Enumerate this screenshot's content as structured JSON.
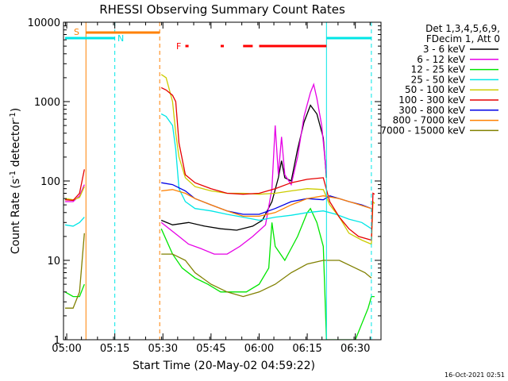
{
  "chart_data": {
    "type": "line",
    "title": "RHESSI Observing Summary Count Rates",
    "xlabel": "Start Time (20-May-02 04:59:22)",
    "ylabel_main": "Count Rate (s",
    "ylabel_sup1": "-1",
    "ylabel_mid": " detector",
    "ylabel_sup2": "-1",
    "ylabel_end": ")",
    "yscale": "log",
    "ylim": [
      1,
      10000
    ],
    "xlim": [
      "04:59:22",
      "06:38"
    ],
    "x_ticks": [
      "05:00",
      "05:15",
      "05:30",
      "05:45",
      "06:00",
      "06:15",
      "06:30"
    ],
    "y_ticks": [
      "1",
      "10",
      "100",
      "1000",
      "10000"
    ],
    "legend_header": [
      "Det 1,3,4,5,6,9,",
      "FDecim 1, Att 0"
    ],
    "legend_position": "right",
    "footer_date": "16-Oct-2021 02:51",
    "flags": {
      "saa_label": "S",
      "night_label": "N",
      "flare_label": "F",
      "saa_color": "#ff8000",
      "night_color": "#00e6e6",
      "flare_color": "#ff0000"
    },
    "vertical_markers": [
      {
        "time": "05:06",
        "color": "#ff8000",
        "style": "solid"
      },
      {
        "time": "05:15",
        "color": "#00e6e6",
        "style": "dashed"
      },
      {
        "time": "05:29",
        "color": "#ff8000",
        "style": "dashed"
      },
      {
        "time": "06:21",
        "color": "#00e6e6",
        "style": "solid"
      },
      {
        "time": "06:35",
        "color": "#00e6e6",
        "style": "dashed"
      }
    ],
    "series": [
      {
        "name": "3 - 6 keV",
        "color": "#000000",
        "points": [
          [
            "05:29.5",
            32
          ],
          [
            "05:33",
            28
          ],
          [
            "05:38",
            30
          ],
          [
            "05:43",
            27
          ],
          [
            "05:48",
            25
          ],
          [
            "05:53",
            24
          ],
          [
            "05:58",
            27
          ],
          [
            "06:01",
            32
          ],
          [
            "06:04",
            55
          ],
          [
            "06:06",
            110
          ],
          [
            "06:07",
            180
          ],
          [
            "06:08",
            110
          ],
          [
            "06:10",
            100
          ],
          [
            "06:12",
            250
          ],
          [
            "06:14",
            550
          ],
          [
            "06:16",
            900
          ],
          [
            "06:18",
            700
          ],
          [
            "06:20",
            350
          ],
          [
            "06:21",
            110
          ]
        ]
      },
      {
        "name": "6 - 12 keV",
        "color": "#e600e6",
        "points": [
          [
            "04:59.5",
            55
          ],
          [
            "05:02",
            55
          ],
          [
            "05:04",
            65
          ],
          [
            "05:05.5",
            90
          ],
          [
            "05:29.5",
            30
          ],
          [
            "05:32",
            25
          ],
          [
            "05:35",
            20
          ],
          [
            "05:38",
            16
          ],
          [
            "05:42",
            14
          ],
          [
            "05:46",
            12
          ],
          [
            "05:50",
            12
          ],
          [
            "05:54",
            15
          ],
          [
            "05:58",
            20
          ],
          [
            "06:02",
            28
          ],
          [
            "06:04",
            80
          ],
          [
            "06:05",
            500
          ],
          [
            "06:06",
            120
          ],
          [
            "06:07",
            360
          ],
          [
            "06:08",
            120
          ],
          [
            "06:10",
            90
          ],
          [
            "06:12",
            200
          ],
          [
            "06:14",
            650
          ],
          [
            "06:16",
            1300
          ],
          [
            "06:17",
            1650
          ],
          [
            "06:18",
            1100
          ],
          [
            "06:19.5",
            500
          ],
          [
            "06:21",
            120
          ]
        ]
      },
      {
        "name": "12 - 25 keV",
        "color": "#00e600",
        "points": [
          [
            "04:59.5",
            4
          ],
          [
            "05:02",
            3.5
          ],
          [
            "05:04",
            3.5
          ],
          [
            "05:05.5",
            5
          ],
          [
            "05:29.5",
            25
          ],
          [
            "05:33",
            12
          ],
          [
            "05:36",
            8
          ],
          [
            "05:40",
            6
          ],
          [
            "05:44",
            5
          ],
          [
            "05:48",
            4
          ],
          [
            "05:52",
            4
          ],
          [
            "05:56",
            4
          ],
          [
            "06:00",
            5
          ],
          [
            "06:03",
            8
          ],
          [
            "06:04",
            30
          ],
          [
            "06:05",
            15
          ],
          [
            "06:08",
            10
          ],
          [
            "06:12",
            20
          ],
          [
            "06:15",
            40
          ],
          [
            "06:16",
            45
          ],
          [
            "06:18",
            30
          ],
          [
            "06:20",
            15
          ],
          [
            "06:21",
            1
          ],
          [
            "06:24",
            1
          ],
          [
            "06:30",
            1
          ],
          [
            "06:34",
            2.5
          ],
          [
            "06:35",
            3.5
          ],
          [
            "06:36",
            3.5
          ]
        ]
      },
      {
        "name": "25 - 50 keV",
        "color": "#00e6e6",
        "points": [
          [
            "04:59.5",
            28
          ],
          [
            "05:02",
            27
          ],
          [
            "05:04",
            30
          ],
          [
            "05:05.5",
            35
          ],
          [
            "05:29.5",
            700
          ],
          [
            "05:31",
            650
          ],
          [
            "05:33",
            500
          ],
          [
            "05:34",
            250
          ],
          [
            "05:35",
            80
          ],
          [
            "05:37",
            55
          ],
          [
            "05:40",
            45
          ],
          [
            "05:45",
            42
          ],
          [
            "05:50",
            38
          ],
          [
            "05:55",
            35
          ],
          [
            "06:00",
            32
          ],
          [
            "06:05",
            35
          ],
          [
            "06:10",
            37
          ],
          [
            "06:15",
            40
          ],
          [
            "06:20",
            42
          ],
          [
            "06:24",
            38
          ],
          [
            "06:28",
            33
          ],
          [
            "06:32",
            30
          ],
          [
            "06:35",
            25
          ]
        ]
      },
      {
        "name": "50 - 100 keV",
        "color": "#cccc00",
        "points": [
          [
            "04:59.5",
            60
          ],
          [
            "05:02",
            58
          ],
          [
            "05:04",
            62
          ],
          [
            "05:05.5",
            85
          ],
          [
            "05:29.5",
            2200
          ],
          [
            "05:31",
            2000
          ],
          [
            "05:33",
            1000
          ],
          [
            "05:34",
            400
          ],
          [
            "05:35",
            200
          ],
          [
            "05:37",
            110
          ],
          [
            "05:40",
            85
          ],
          [
            "05:45",
            75
          ],
          [
            "05:50",
            70
          ],
          [
            "05:55",
            70
          ],
          [
            "06:00",
            68
          ],
          [
            "06:05",
            70
          ],
          [
            "06:10",
            75
          ],
          [
            "06:15",
            80
          ],
          [
            "06:20",
            78
          ],
          [
            "06:22",
            50
          ],
          [
            "06:25",
            35
          ],
          [
            "06:28",
            22
          ],
          [
            "06:32",
            18
          ],
          [
            "06:35",
            16
          ],
          [
            "06:35.5",
            55
          ],
          [
            "06:36",
            52
          ]
        ]
      },
      {
        "name": "100 - 300 keV",
        "color": "#e60000",
        "points": [
          [
            "04:59.5",
            58
          ],
          [
            "05:02",
            57
          ],
          [
            "05:04",
            70
          ],
          [
            "05:05.5",
            140
          ],
          [
            "05:29.5",
            1500
          ],
          [
            "05:31",
            1400
          ],
          [
            "05:33",
            1200
          ],
          [
            "05:34",
            1000
          ],
          [
            "05:35",
            300
          ],
          [
            "05:37",
            120
          ],
          [
            "05:40",
            95
          ],
          [
            "05:45",
            80
          ],
          [
            "05:50",
            70
          ],
          [
            "05:55",
            68
          ],
          [
            "06:00",
            70
          ],
          [
            "06:05",
            80
          ],
          [
            "06:10",
            95
          ],
          [
            "06:15",
            105
          ],
          [
            "06:20",
            110
          ],
          [
            "06:22",
            55
          ],
          [
            "06:25",
            35
          ],
          [
            "06:28",
            25
          ],
          [
            "06:31",
            20
          ],
          [
            "06:35",
            18
          ],
          [
            "06:35.5",
            70
          ],
          [
            "06:36",
            68
          ]
        ]
      },
      {
        "name": "300 - 800 keV",
        "color": "#0000e6",
        "points": [
          [
            "05:29.5",
            95
          ],
          [
            "05:33",
            90
          ],
          [
            "05:37",
            75
          ],
          [
            "05:40",
            60
          ],
          [
            "05:45",
            50
          ],
          [
            "05:50",
            42
          ],
          [
            "05:55",
            38
          ],
          [
            "06:00",
            38
          ],
          [
            "06:05",
            45
          ],
          [
            "06:10",
            55
          ],
          [
            "06:15",
            60
          ],
          [
            "06:20",
            58
          ],
          [
            "06:22",
            65
          ],
          [
            "06:25",
            60
          ],
          [
            "06:28",
            55
          ],
          [
            "06:32",
            50
          ],
          [
            "06:35",
            45
          ]
        ]
      },
      {
        "name": "800 - 7000 keV",
        "color": "#ff8000",
        "points": [
          [
            "05:29.5",
            75
          ],
          [
            "05:33",
            78
          ],
          [
            "05:37",
            70
          ],
          [
            "05:40",
            60
          ],
          [
            "05:45",
            50
          ],
          [
            "05:50",
            42
          ],
          [
            "05:55",
            36
          ],
          [
            "06:00",
            36
          ],
          [
            "06:05",
            40
          ],
          [
            "06:10",
            50
          ],
          [
            "06:15",
            60
          ],
          [
            "06:20",
            65
          ],
          [
            "06:25",
            60
          ],
          [
            "06:30",
            52
          ],
          [
            "06:35",
            45
          ]
        ]
      },
      {
        "name": "7000 - 15000 keV",
        "color": "#808000",
        "points": [
          [
            "04:59.5",
            2.5
          ],
          [
            "05:02",
            2.5
          ],
          [
            "05:04",
            4
          ],
          [
            "05:05.5",
            22
          ],
          [
            "05:29.5",
            12
          ],
          [
            "05:33",
            12
          ],
          [
            "05:37",
            10
          ],
          [
            "05:40",
            7
          ],
          [
            "05:45",
            5
          ],
          [
            "05:50",
            4
          ],
          [
            "05:55",
            3.5
          ],
          [
            "06:00",
            4
          ],
          [
            "06:05",
            5
          ],
          [
            "06:10",
            7
          ],
          [
            "06:15",
            9
          ],
          [
            "06:20",
            10
          ],
          [
            "06:25",
            10
          ],
          [
            "06:30",
            8
          ],
          [
            "06:33",
            7
          ],
          [
            "06:35",
            6
          ]
        ]
      }
    ],
    "saa_bars": [
      [
        "05:06",
        "05:29"
      ]
    ],
    "night_bars": [
      [
        "04:59.5",
        "05:15"
      ],
      [
        "06:21",
        "06:35"
      ]
    ],
    "flare_bars": [
      [
        "05:37",
        "05:38"
      ],
      [
        "05:48",
        "05:49"
      ],
      [
        "05:55",
        "05:58"
      ],
      [
        "06:00",
        "06:21"
      ]
    ]
  }
}
